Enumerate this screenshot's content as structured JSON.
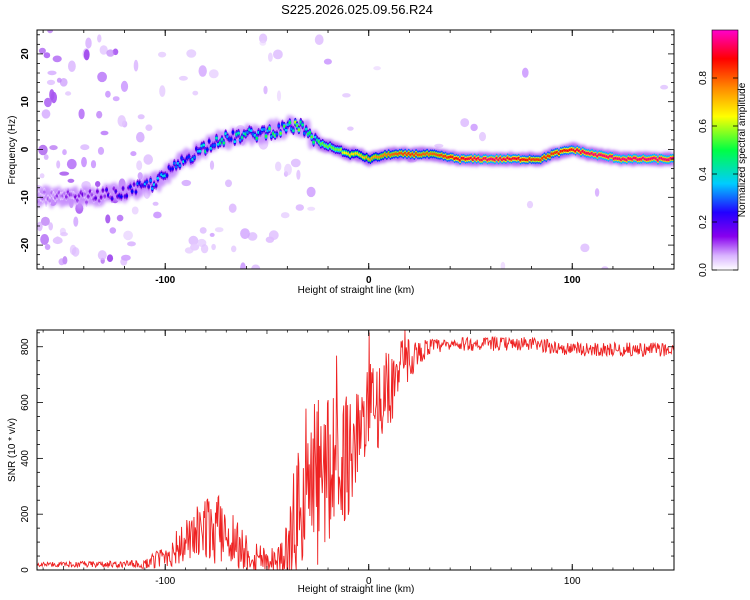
{
  "title": "S225.2026.025.09.56.R24",
  "chart_data": [
    {
      "type": "heatmap",
      "name": "spectrogram",
      "xlabel": "Height of straight line (km)",
      "ylabel": "Frequency (Hz)",
      "xlim": [
        -163,
        150
      ],
      "ylim": [
        -25,
        25
      ],
      "x_ticks": [
        -100,
        0,
        100
      ],
      "x_tick_labels": [
        "-100",
        "0",
        "100"
      ],
      "y_ticks": [
        20,
        10,
        0,
        -10,
        -20
      ],
      "y_tick_labels": [
        "20",
        "10",
        "0",
        "-10",
        "-20"
      ],
      "colorbar": {
        "label": "Normalized spectral amplitude",
        "range": [
          0,
          1
        ],
        "ticks": [
          0.0,
          0.2,
          0.4,
          0.6,
          0.8
        ],
        "tick_labels": [
          "0.0",
          "0.2",
          "0.4",
          "0.6",
          "0.8"
        ],
        "colors": [
          "#ffffff",
          "#cc99ff",
          "#7700dd",
          "#0000ff",
          "#00ddff",
          "#00ff44",
          "#ffff00",
          "#ff8800",
          "#ff0000",
          "#ff00cc"
        ]
      },
      "ridge": {
        "x": [
          -160,
          -140,
          -120,
          -105,
          -90,
          -75,
          -60,
          -45,
          -35,
          -30,
          -28,
          -22,
          -15,
          -10,
          -5,
          0,
          10,
          20,
          30,
          45,
          60,
          75,
          80,
          85,
          90,
          100,
          110,
          125,
          150
        ],
        "freq": [
          -10,
          -10,
          -9,
          -7,
          -2,
          2,
          3,
          4,
          5,
          4,
          2,
          1,
          0,
          -1,
          -1,
          -2,
          -1,
          -1,
          -1,
          -2,
          -2,
          -2,
          -2,
          -2,
          -1,
          0,
          -1,
          -2,
          -2
        ],
        "amplitude": [
          0.15,
          0.2,
          0.3,
          0.4,
          0.4,
          0.45,
          0.45,
          0.5,
          0.55,
          0.5,
          0.55,
          0.6,
          0.6,
          0.7,
          0.7,
          0.75,
          0.8,
          0.85,
          0.8,
          0.9,
          0.95,
          0.9,
          0.85,
          0.85,
          0.85,
          0.9,
          0.95,
          0.95,
          0.95
        ]
      }
    },
    {
      "type": "line",
      "name": "snr",
      "xlabel": "Height of straight line (km)",
      "ylabel": "SNR (10 * v/v)",
      "xlim": [
        -163,
        150
      ],
      "ylim": [
        0,
        860
      ],
      "x_ticks": [
        -100,
        0,
        100
      ],
      "x_tick_labels": [
        "-100",
        "0",
        "100"
      ],
      "y_ticks": [
        0,
        200,
        400,
        600,
        800
      ],
      "y_tick_labels": [
        "0",
        "200",
        "400",
        "600",
        "800"
      ],
      "color": "#ee2222",
      "envelope": {
        "x": [
          -163,
          -110,
          -100,
          -90,
          -80,
          -70,
          -60,
          -50,
          -40,
          -35,
          -30,
          -25,
          -20,
          -15,
          -10,
          0,
          10,
          20,
          30,
          50,
          80,
          100,
          150
        ],
        "y": [
          20,
          20,
          50,
          100,
          150,
          140,
          60,
          40,
          40,
          200,
          280,
          320,
          350,
          380,
          420,
          550,
          650,
          760,
          800,
          810,
          810,
          790,
          790
        ]
      },
      "noise_amplitude": {
        "x": [
          -163,
          -110,
          -90,
          -75,
          -55,
          -45,
          -35,
          -25,
          -15,
          0,
          15,
          25,
          35,
          150
        ],
        "y": [
          8,
          15,
          80,
          130,
          60,
          40,
          250,
          330,
          250,
          180,
          120,
          40,
          25,
          25
        ]
      }
    }
  ]
}
